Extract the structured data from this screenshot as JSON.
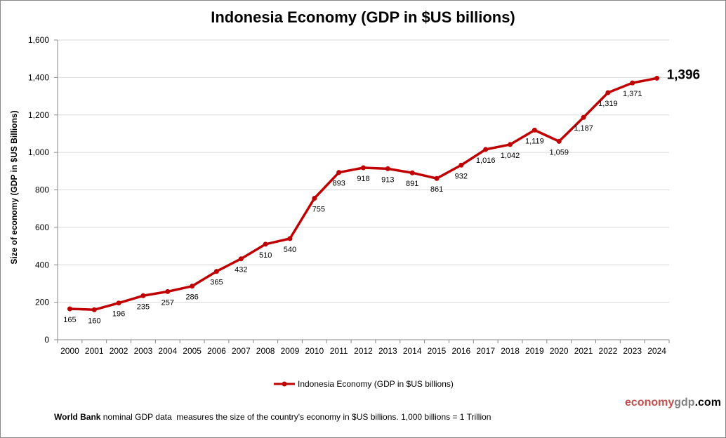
{
  "chart_data": {
    "type": "line",
    "title": "Indonesia Economy (GDP in $US billions)",
    "ylabel": "Size of economy (GDP in $US Billions)",
    "xlabel": "",
    "ylim": [
      0,
      1600
    ],
    "yticks": [
      "0",
      "200",
      "400",
      "600",
      "800",
      "1,000",
      "1,200",
      "1,400",
      "1,600"
    ],
    "ytick_values": [
      0,
      200,
      400,
      600,
      800,
      1000,
      1200,
      1400,
      1600
    ],
    "grid": true,
    "legend_placement": "bottom",
    "categories": [
      "2000",
      "2001",
      "2002",
      "2003",
      "2004",
      "2005",
      "2006",
      "2007",
      "2008",
      "2009",
      "2010",
      "2011",
      "2012",
      "2013",
      "2014",
      "2015",
      "2016",
      "2017",
      "2018",
      "2019",
      "2020",
      "2021",
      "2022",
      "2023",
      "2024"
    ],
    "series": [
      {
        "name": "Indonesia Economy (GDP in $US billions)",
        "color": "#c00000",
        "values": [
          165,
          160,
          196,
          235,
          257,
          286,
          365,
          432,
          510,
          540,
          755,
          893,
          918,
          913,
          891,
          861,
          932,
          1016,
          1042,
          1119,
          1059,
          1187,
          1319,
          1371,
          1396
        ],
        "labels": [
          "165",
          "160",
          "196",
          "235",
          "257",
          "286",
          "365",
          "432",
          "510",
          "540",
          "755",
          "893",
          "918",
          "913",
          "891",
          "861",
          "932",
          "1,016",
          "1,042",
          "1,119",
          "1,059",
          "1,187",
          "1,319",
          "1,371",
          "1,396"
        ]
      }
    ]
  },
  "footer": {
    "note_bold": "World Bank",
    "note": " nominal GDP data  measures the size of the country's economy in $US billions. 1,000 billions = 1 Trillion",
    "brand_part1": "economy",
    "brand_part2": "gdp",
    "brand_part3": ".com",
    "brand_colors": [
      "#c0504d",
      "#808080",
      "#000000"
    ]
  }
}
